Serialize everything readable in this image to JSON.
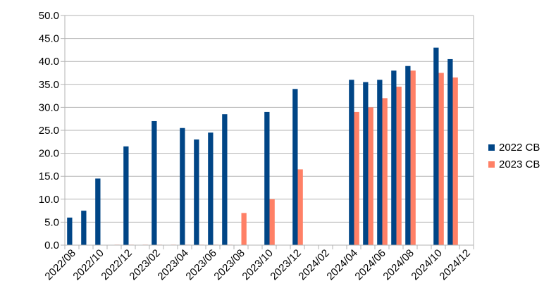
{
  "chart_data": {
    "type": "bar",
    "title": "",
    "xlabel": "",
    "ylabel": "",
    "ylim": [
      0,
      50
    ],
    "y_ticks": [
      "0.0",
      "5.0",
      "10.0",
      "15.0",
      "20.0",
      "25.0",
      "30.0",
      "35.0",
      "40.0",
      "45.0",
      "50.0"
    ],
    "grid": "horizontal",
    "legend_position": "right",
    "categories": [
      "2022/08",
      "2022/09",
      "2022/10",
      "2022/11",
      "2022/12",
      "2023/01",
      "2023/02",
      "2023/03",
      "2023/04",
      "2023/05",
      "2023/06",
      "2023/07",
      "2023/08",
      "2023/09",
      "2023/10",
      "2023/11",
      "2023/12",
      "2024/01",
      "2024/02",
      "2024/03",
      "2024/04",
      "2024/05",
      "2024/06",
      "2024/07",
      "2024/08",
      "2024/09",
      "2024/10",
      "2024/11",
      "2024/12"
    ],
    "x_tick_labels": [
      "2022/08",
      "2022/10",
      "2022/12",
      "2023/02",
      "2023/04",
      "2023/06",
      "2023/08",
      "2023/10",
      "2023/12",
      "2024/02",
      "2024/04",
      "2024/06",
      "2024/08",
      "2024/10",
      "2024/12"
    ],
    "series": [
      {
        "name": "2022 CB",
        "color": "#004586",
        "values": [
          6,
          7.5,
          14.5,
          0,
          21.5,
          0,
          27,
          0,
          25.5,
          23,
          24.5,
          28.5,
          0,
          0,
          29,
          0,
          34,
          0,
          0,
          0,
          36,
          35.5,
          36,
          38,
          39,
          0,
          43,
          40.5,
          null
        ]
      },
      {
        "name": "2023 CB",
        "color": "#ff8066",
        "values": [
          0,
          0,
          0,
          0.1,
          0.1,
          0.1,
          0.1,
          0.1,
          0.1,
          0.1,
          0.1,
          0.1,
          7,
          0,
          10,
          0,
          16.5,
          0,
          0,
          0,
          29,
          30,
          32,
          34.5,
          38,
          0,
          37.5,
          36.5,
          null
        ]
      }
    ]
  }
}
